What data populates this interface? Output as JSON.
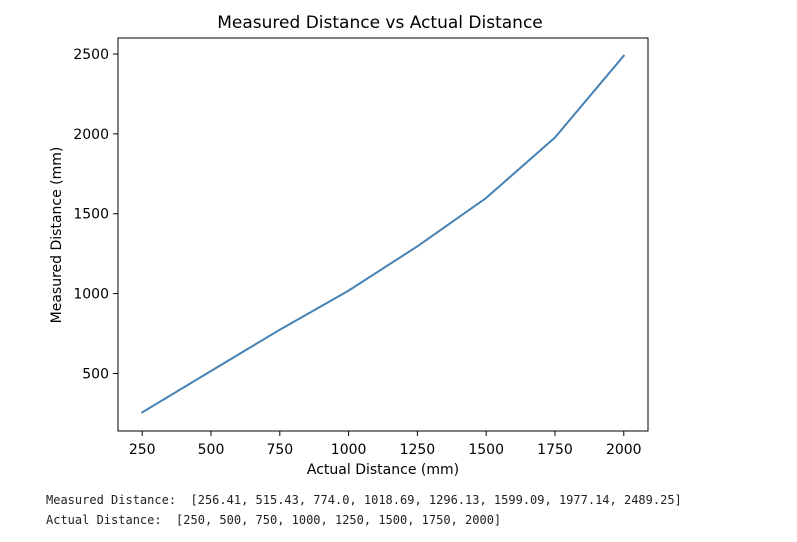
{
  "chart_data": {
    "type": "line",
    "title": "Measured Distance vs Actual Distance",
    "xlabel": "Actual Distance (mm)",
    "ylabel": "Measured Distance (mm)",
    "x": [
      250,
      500,
      750,
      1000,
      1250,
      1500,
      1750,
      2000
    ],
    "series": [
      {
        "values": [
          256.41,
          515.43,
          774.0,
          1018.69,
          1296.13,
          1599.09,
          1977.14,
          2489.25
        ],
        "color": "#4682b4"
      }
    ],
    "xticks": [
      250,
      500,
      750,
      1000,
      1250,
      1500,
      1750,
      2000
    ],
    "yticks": [
      500,
      1000,
      1500,
      2000,
      2500
    ],
    "xlim": [
      162,
      2088
    ],
    "ylim": [
      140,
      2600
    ],
    "grid": false
  },
  "output": {
    "measured_line": "Measured Distance:  [256.41, 515.43, 774.0, 1018.69, 1296.13, 1599.09, 1977.14, 2489.25]",
    "actual_line": "Actual Distance:  [250, 500, 750, 1000, 1250, 1500, 1750, 2000]"
  }
}
